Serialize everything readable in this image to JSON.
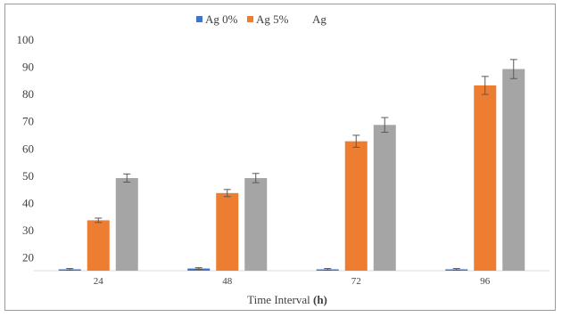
{
  "chart_data": {
    "type": "bar",
    "categories": [
      "24",
      "48",
      "72",
      "96"
    ],
    "series": [
      {
        "name": "Ag 0%",
        "color": "#4472c4",
        "values": [
          15.5,
          15.8,
          15.5,
          15.5
        ],
        "errors": [
          0.3,
          0.3,
          0.3,
          0.3
        ]
      },
      {
        "name": "Ag 5%",
        "color": "#ed7d31",
        "values": [
          33.5,
          43.5,
          62.5,
          83
        ],
        "errors": [
          0.8,
          1.3,
          2.2,
          3.3
        ]
      },
      {
        "name": "Ag",
        "color": "#a5a5a5",
        "values": [
          49,
          49,
          68.5,
          89
        ],
        "errors": [
          1.5,
          1.7,
          2.7,
          3.5
        ]
      }
    ],
    "xlabel_prefix": "Time Interval ",
    "xlabel_unit": "(h)",
    "ylabel": "",
    "yticks": [
      "100",
      "90",
      "80",
      "70",
      "60",
      "50",
      "40",
      "30",
      "20"
    ],
    "ylim": [
      15,
      100
    ],
    "grid": false,
    "legend_position": "top"
  }
}
